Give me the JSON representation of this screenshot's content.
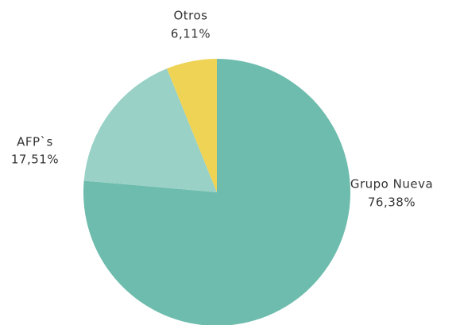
{
  "chart_data": {
    "type": "pie",
    "categories": [
      "Grupo Nueva",
      "AFP`s",
      "Otros"
    ],
    "values": [
      76.38,
      17.51,
      6.11
    ],
    "value_labels": [
      "76,38%",
      "17,51%",
      "6,11%"
    ],
    "colors": [
      "#6dbcad",
      "#99d1c6",
      "#efd355"
    ]
  }
}
